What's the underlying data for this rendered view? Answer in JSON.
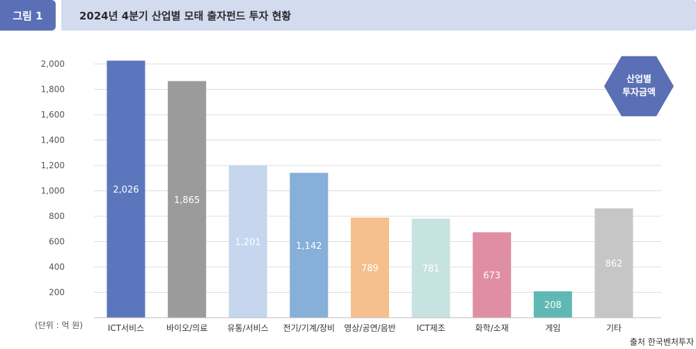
{
  "header": {
    "figure_label": "그림 1",
    "title": "2024년 4분기 산업별 모태 출자펀드 투자 현황"
  },
  "badge": {
    "line1": "산업별",
    "line2": "투자금액"
  },
  "unit_note": "(단위 : 억 원)",
  "source": "출처 한국벤처투자",
  "colors": {
    "header_badge": "#5a6fb5",
    "header_bar": "#d3dbef",
    "hexagon": "#5a6fb5"
  },
  "chart_data": {
    "type": "bar",
    "categories": [
      "ICT서비스",
      "바이오/의료",
      "유통/서비스",
      "전기/기계/장비",
      "영상/공연/음반",
      "ICT제조",
      "화학/소재",
      "게임",
      "기타"
    ],
    "values": [
      2026,
      1865,
      1201,
      1142,
      789,
      781,
      673,
      208,
      862
    ],
    "value_labels": [
      "2,026",
      "1,865",
      "1,201",
      "1,142",
      "789",
      "781",
      "673",
      "208",
      "862"
    ],
    "bar_colors": [
      "#5c76bd",
      "#9b9b9b",
      "#c5d6ee",
      "#86afd9",
      "#f5c08e",
      "#c7e3e1",
      "#df8ea3",
      "#5fb8b3",
      "#c6c6c6"
    ],
    "yticks": [
      200,
      400,
      600,
      800,
      1000,
      1200,
      1400,
      1600,
      1800,
      2000
    ],
    "ytick_labels": [
      "200",
      "400",
      "600",
      "800",
      "1,000",
      "1,200",
      "1,400",
      "1,600",
      "1,800",
      "2,000"
    ],
    "ylim": [
      0,
      2000
    ],
    "title": "",
    "xlabel": "",
    "ylabel": "",
    "grid": true
  }
}
